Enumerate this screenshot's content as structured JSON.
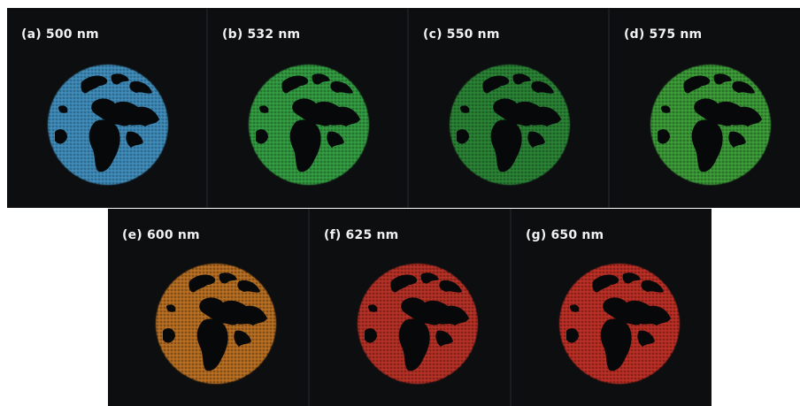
{
  "figure": {
    "panels": [
      {
        "label": "(a) 500 nm",
        "color": "#4aa3d8",
        "glow": "#1f5f86"
      },
      {
        "label": "(b) 532 nm",
        "color": "#39b84a",
        "glow": "#1c5e25"
      },
      {
        "label": "(c) 550 nm",
        "color": "#2f9a3a",
        "glow": "#174d1c"
      },
      {
        "label": "(d) 575 nm",
        "color": "#45b83f",
        "glow": "#1f5a1c"
      },
      {
        "label": "(e) 600 nm",
        "color": "#d98226",
        "glow": "#6b3c10"
      },
      {
        "label": "(f) 625 nm",
        "color": "#d8362a",
        "glow": "#6a1812"
      },
      {
        "label": "(g) 650 nm",
        "color": "#e03328",
        "glow": "#6c1510"
      }
    ]
  }
}
